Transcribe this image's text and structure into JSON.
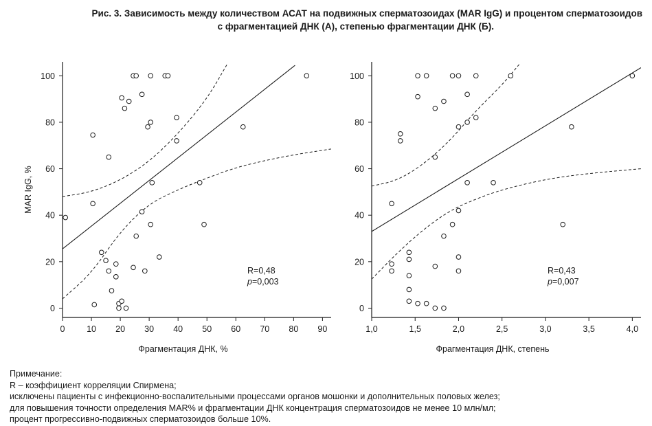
{
  "title": {
    "line1": "Рис. 3. Зависимость между количеством АСАТ на подвижных сперматозоидах (MAR IgG) и процентом сперматозоидов",
    "line2": "с фрагментацией ДНК (А), степенью фрагментации ДНК (Б)."
  },
  "note": {
    "heading": "Примечание:",
    "lines": [
      "R – коэффициент корреляции Спирмена;",
      "исключены пациенты с инфекционно-воспалительными процессами органов мошонки и дополнительных половых желез;",
      "для повышения точности определения MAR% и фрагментации ДНК концентрация сперматозоидов не менее 10 млн/мл;",
      "процент прогрессивно-подвижных сперматозоидов больше 10%."
    ]
  },
  "colors": {
    "ink": "#1a1a1a",
    "background": "#ffffff"
  },
  "chart_data": [
    {
      "type": "scatter",
      "panel": "A",
      "xlabel": "Фрагментация ДНК, %",
      "ylabel": "MAR IgG, %",
      "xlim": [
        0,
        93
      ],
      "ylim": [
        -4,
        106
      ],
      "xticks": [
        0,
        10,
        20,
        30,
        40,
        50,
        60,
        70,
        80,
        90
      ],
      "yticks": [
        0,
        20,
        40,
        60,
        80,
        100
      ],
      "annotation": {
        "r": "R=0,48",
        "p_label": "p",
        "p_value": "=0,003"
      },
      "points": [
        {
          "x": 1,
          "y": 39
        },
        {
          "x": 10.5,
          "y": 74.5
        },
        {
          "x": 10.5,
          "y": 45
        },
        {
          "x": 11,
          "y": 1.5
        },
        {
          "x": 13.5,
          "y": 24
        },
        {
          "x": 15,
          "y": 20.5
        },
        {
          "x": 16,
          "y": 65
        },
        {
          "x": 16,
          "y": 16
        },
        {
          "x": 17,
          "y": 7.5
        },
        {
          "x": 18.5,
          "y": 19
        },
        {
          "x": 18.5,
          "y": 13.5
        },
        {
          "x": 19.5,
          "y": 2
        },
        {
          "x": 19.5,
          "y": 0
        },
        {
          "x": 20.5,
          "y": 90.5
        },
        {
          "x": 20.5,
          "y": 3
        },
        {
          "x": 21.5,
          "y": 86
        },
        {
          "x": 22,
          "y": 0
        },
        {
          "x": 23,
          "y": 89
        },
        {
          "x": 24.5,
          "y": 100
        },
        {
          "x": 24.5,
          "y": 17.5
        },
        {
          "x": 25.5,
          "y": 100
        },
        {
          "x": 25.5,
          "y": 31
        },
        {
          "x": 27.5,
          "y": 92
        },
        {
          "x": 27.5,
          "y": 41.5
        },
        {
          "x": 28.5,
          "y": 16
        },
        {
          "x": 29.5,
          "y": 78
        },
        {
          "x": 30.5,
          "y": 100
        },
        {
          "x": 30.5,
          "y": 80
        },
        {
          "x": 30.5,
          "y": 36
        },
        {
          "x": 31,
          "y": 54
        },
        {
          "x": 33.5,
          "y": 22
        },
        {
          "x": 35.5,
          "y": 100
        },
        {
          "x": 36.5,
          "y": 100
        },
        {
          "x": 39.5,
          "y": 82
        },
        {
          "x": 39.5,
          "y": 72
        },
        {
          "x": 47.5,
          "y": 54
        },
        {
          "x": 49,
          "y": 36
        },
        {
          "x": 62.5,
          "y": 78
        },
        {
          "x": 84.5,
          "y": 100
        }
      ],
      "regression": [
        [
          0,
          25.5
        ],
        [
          80.5,
          104.5
        ]
      ],
      "ci_upper": [
        [
          0,
          48
        ],
        [
          10,
          50
        ],
        [
          20,
          55
        ],
        [
          30,
          63
        ],
        [
          40,
          75
        ],
        [
          50,
          90
        ],
        [
          57,
          105
        ]
      ],
      "ci_lower": [
        [
          0,
          4
        ],
        [
          10,
          15
        ],
        [
          20,
          33
        ],
        [
          30,
          45
        ],
        [
          40,
          51
        ],
        [
          50,
          56
        ],
        [
          60,
          60.5
        ],
        [
          70,
          63.5
        ],
        [
          80,
          66
        ],
        [
          93,
          68.5
        ]
      ]
    },
    {
      "type": "scatter",
      "panel": "Б",
      "xlabel": "Фрагментация ДНК, степень",
      "ylabel": "",
      "xlim": [
        1.0,
        4.1
      ],
      "ylim": [
        -4,
        106
      ],
      "xticks": [
        "1,0",
        "1,5",
        "2,0",
        "2,5",
        "3,0",
        "3,5",
        "4,0"
      ],
      "yticks": [
        0,
        20,
        40,
        60,
        80,
        100
      ],
      "annotation": {
        "r": "R=0,43",
        "p_label": "p",
        "p_value": "=0,007"
      },
      "points": [
        {
          "x": 1.23,
          "y": 45
        },
        {
          "x": 1.23,
          "y": 19
        },
        {
          "x": 1.23,
          "y": 16
        },
        {
          "x": 1.33,
          "y": 75
        },
        {
          "x": 1.33,
          "y": 72
        },
        {
          "x": 1.43,
          "y": 24
        },
        {
          "x": 1.43,
          "y": 21
        },
        {
          "x": 1.43,
          "y": 14
        },
        {
          "x": 1.43,
          "y": 8
        },
        {
          "x": 1.43,
          "y": 3
        },
        {
          "x": 1.53,
          "y": 100
        },
        {
          "x": 1.53,
          "y": 91
        },
        {
          "x": 1.53,
          "y": 2
        },
        {
          "x": 1.63,
          "y": 100
        },
        {
          "x": 1.63,
          "y": 2
        },
        {
          "x": 1.73,
          "y": 86
        },
        {
          "x": 1.73,
          "y": 65
        },
        {
          "x": 1.73,
          "y": 18
        },
        {
          "x": 1.73,
          "y": 0
        },
        {
          "x": 1.83,
          "y": 89
        },
        {
          "x": 1.83,
          "y": 31
        },
        {
          "x": 1.83,
          "y": 0
        },
        {
          "x": 1.93,
          "y": 100
        },
        {
          "x": 1.93,
          "y": 36
        },
        {
          "x": 2.0,
          "y": 100
        },
        {
          "x": 2.0,
          "y": 78
        },
        {
          "x": 2.0,
          "y": 42
        },
        {
          "x": 2.0,
          "y": 22
        },
        {
          "x": 2.0,
          "y": 16
        },
        {
          "x": 2.1,
          "y": 92
        },
        {
          "x": 2.1,
          "y": 80
        },
        {
          "x": 2.1,
          "y": 54
        },
        {
          "x": 2.2,
          "y": 100
        },
        {
          "x": 2.2,
          "y": 82
        },
        {
          "x": 2.4,
          "y": 54
        },
        {
          "x": 2.6,
          "y": 100
        },
        {
          "x": 3.2,
          "y": 36
        },
        {
          "x": 3.3,
          "y": 78
        },
        {
          "x": 4.0,
          "y": 100
        }
      ],
      "regression": [
        [
          1.0,
          33
        ],
        [
          4.1,
          103.5
        ]
      ],
      "ci_upper": [
        [
          1.0,
          52.5
        ],
        [
          1.3,
          55
        ],
        [
          1.6,
          62
        ],
        [
          1.9,
          72
        ],
        [
          2.2,
          85
        ],
        [
          2.5,
          96
        ],
        [
          2.7,
          105
        ]
      ],
      "ci_lower": [
        [
          1.0,
          12.5
        ],
        [
          1.3,
          24
        ],
        [
          1.6,
          34
        ],
        [
          1.9,
          42
        ],
        [
          2.2,
          47
        ],
        [
          2.5,
          51
        ],
        [
          3.0,
          55.5
        ],
        [
          3.5,
          58
        ],
        [
          4.1,
          60
        ]
      ]
    }
  ]
}
